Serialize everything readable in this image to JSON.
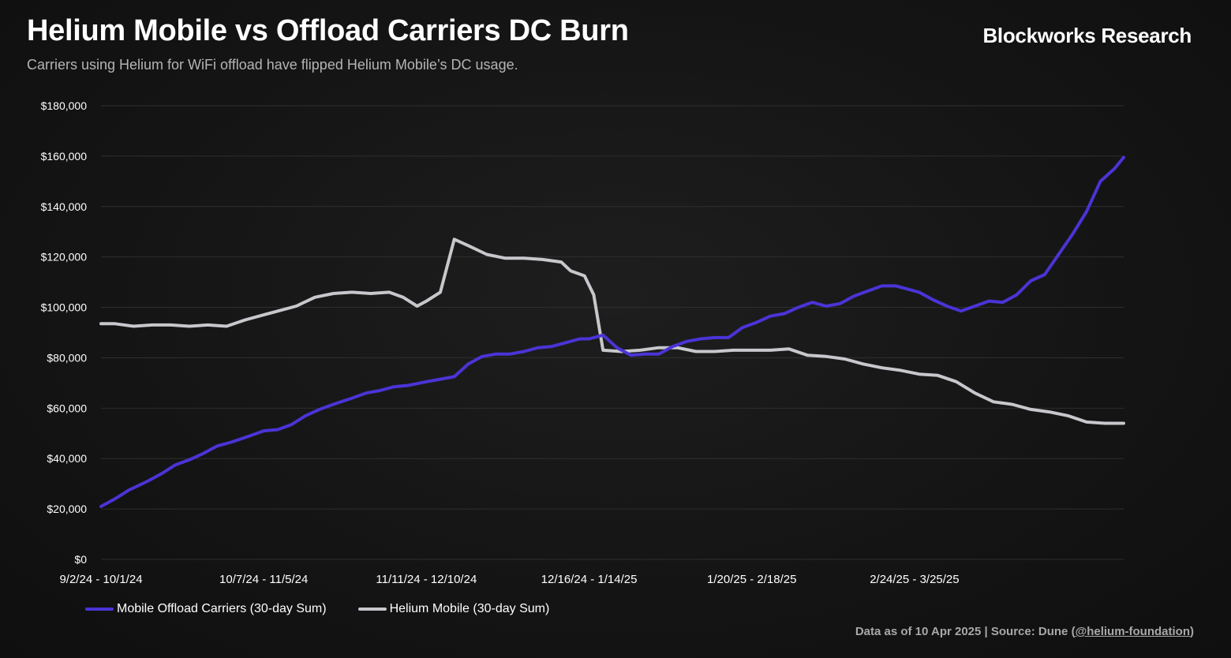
{
  "header": {
    "title": "Helium Mobile vs Offload Carriers DC Burn",
    "subtitle": "Carriers using Helium for WiFi offload have flipped Helium Mobile’s DC usage.",
    "brand": "Blockworks Research"
  },
  "footer": {
    "prefix": "Data as of 10 Apr 2025 | Source: Dune (",
    "link": "@helium-foundation",
    "suffix": ")"
  },
  "colors": {
    "offload": "#4a34d6",
    "helium": "#c7c7cc",
    "grid": "#2e2e2e"
  },
  "chart_data": {
    "type": "line",
    "title": "Helium Mobile vs Offload Carriers DC Burn",
    "ylim": [
      0,
      180000
    ],
    "y_ticks": [
      {
        "value": 0,
        "label": "$0"
      },
      {
        "value": 20000,
        "label": "$20,000"
      },
      {
        "value": 40000,
        "label": "$40,000"
      },
      {
        "value": 60000,
        "label": "$60,000"
      },
      {
        "value": 80000,
        "label": "$80,000"
      },
      {
        "value": 100000,
        "label": "$100,000"
      },
      {
        "value": 120000,
        "label": "$120,000"
      },
      {
        "value": 140000,
        "label": "$140,000"
      },
      {
        "value": 160000,
        "label": "$160,000"
      },
      {
        "value": 180000,
        "label": "$180,000"
      }
    ],
    "x_range": [
      "2024-09-02",
      "2025-04-10"
    ],
    "x_ticks": [
      {
        "date": "2024-09-02",
        "label": "9/2/24 - 10/1/24"
      },
      {
        "date": "2024-10-07",
        "label": "10/7/24 - 11/5/24"
      },
      {
        "date": "2024-11-11",
        "label": "11/11/24 - 12/10/24"
      },
      {
        "date": "2024-12-16",
        "label": "12/16/24 - 1/14/25"
      },
      {
        "date": "2025-01-20",
        "label": "1/20/25 - 2/18/25"
      },
      {
        "date": "2025-02-24",
        "label": "2/24/25 - 3/25/25"
      }
    ],
    "grid": true,
    "legend_position": "bottom-left",
    "series": [
      {
        "name": "Mobile Offload Carriers (30-day Sum)",
        "points": [
          [
            "2024-09-02",
            21000
          ],
          [
            "2024-09-05",
            24000
          ],
          [
            "2024-09-08",
            27500
          ],
          [
            "2024-09-12",
            31000
          ],
          [
            "2024-09-15",
            34000
          ],
          [
            "2024-09-18",
            37500
          ],
          [
            "2024-09-21",
            39500
          ],
          [
            "2024-09-24",
            42000
          ],
          [
            "2024-09-27",
            45000
          ],
          [
            "2024-09-30",
            46500
          ],
          [
            "2024-10-04",
            49000
          ],
          [
            "2024-10-07",
            51000
          ],
          [
            "2024-10-10",
            51500
          ],
          [
            "2024-10-13",
            53500
          ],
          [
            "2024-10-16",
            57000
          ],
          [
            "2024-10-19",
            59500
          ],
          [
            "2024-10-22",
            61500
          ],
          [
            "2024-10-26",
            64000
          ],
          [
            "2024-10-29",
            66000
          ],
          [
            "2024-11-01",
            67000
          ],
          [
            "2024-11-04",
            68500
          ],
          [
            "2024-11-07",
            69000
          ],
          [
            "2024-11-11",
            70500
          ],
          [
            "2024-11-14",
            71500
          ],
          [
            "2024-11-17",
            72500
          ],
          [
            "2024-11-20",
            77500
          ],
          [
            "2024-11-23",
            80500
          ],
          [
            "2024-11-26",
            81500
          ],
          [
            "2024-11-29",
            81500
          ],
          [
            "2024-12-02",
            82500
          ],
          [
            "2024-12-05",
            84000
          ],
          [
            "2024-12-08",
            84500
          ],
          [
            "2024-12-11",
            86000
          ],
          [
            "2024-12-14",
            87500
          ],
          [
            "2024-12-16",
            87500
          ],
          [
            "2024-12-19",
            89000
          ],
          [
            "2024-12-22",
            84000
          ],
          [
            "2024-12-25",
            81000
          ],
          [
            "2024-12-28",
            81500
          ],
          [
            "2024-12-31",
            81500
          ],
          [
            "2025-01-03",
            84500
          ],
          [
            "2025-01-06",
            86500
          ],
          [
            "2025-01-09",
            87500
          ],
          [
            "2025-01-12",
            88000
          ],
          [
            "2025-01-15",
            88000
          ],
          [
            "2025-01-18",
            92000
          ],
          [
            "2025-01-21",
            94000
          ],
          [
            "2025-01-24",
            96500
          ],
          [
            "2025-01-27",
            97500
          ],
          [
            "2025-01-30",
            100000
          ],
          [
            "2025-02-02",
            102000
          ],
          [
            "2025-02-05",
            100500
          ],
          [
            "2025-02-08",
            101500
          ],
          [
            "2025-02-11",
            104500
          ],
          [
            "2025-02-14",
            106500
          ],
          [
            "2025-02-17",
            108500
          ],
          [
            "2025-02-20",
            108500
          ],
          [
            "2025-02-22",
            107500
          ],
          [
            "2025-02-25",
            106000
          ],
          [
            "2025-02-28",
            103000
          ],
          [
            "2025-03-03",
            100500
          ],
          [
            "2025-03-06",
            98500
          ],
          [
            "2025-03-09",
            100500
          ],
          [
            "2025-03-12",
            102500
          ],
          [
            "2025-03-15",
            102000
          ],
          [
            "2025-03-18",
            105000
          ],
          [
            "2025-03-21",
            110500
          ],
          [
            "2025-03-24",
            113000
          ],
          [
            "2025-03-27",
            121000
          ],
          [
            "2025-03-30",
            129000
          ],
          [
            "2025-04-02",
            138000
          ],
          [
            "2025-04-05",
            150000
          ],
          [
            "2025-04-08",
            155000
          ],
          [
            "2025-04-10",
            159500
          ]
        ]
      },
      {
        "name": "Helium Mobile (30-day Sum)",
        "points": [
          [
            "2024-09-02",
            93500
          ],
          [
            "2024-09-05",
            93500
          ],
          [
            "2024-09-09",
            92500
          ],
          [
            "2024-09-13",
            93000
          ],
          [
            "2024-09-17",
            93000
          ],
          [
            "2024-09-21",
            92500
          ],
          [
            "2024-09-25",
            93000
          ],
          [
            "2024-09-29",
            92500
          ],
          [
            "2024-10-03",
            95000
          ],
          [
            "2024-10-07",
            97000
          ],
          [
            "2024-10-10",
            98500
          ],
          [
            "2024-10-14",
            100500
          ],
          [
            "2024-10-18",
            104000
          ],
          [
            "2024-10-22",
            105500
          ],
          [
            "2024-10-26",
            106000
          ],
          [
            "2024-10-30",
            105500
          ],
          [
            "2024-11-03",
            106000
          ],
          [
            "2024-11-06",
            104000
          ],
          [
            "2024-11-09",
            100500
          ],
          [
            "2024-11-11",
            102500
          ],
          [
            "2024-11-14",
            106000
          ],
          [
            "2024-11-17",
            127000
          ],
          [
            "2024-11-20",
            124500
          ],
          [
            "2024-11-24",
            121000
          ],
          [
            "2024-11-28",
            119500
          ],
          [
            "2024-12-02",
            119500
          ],
          [
            "2024-12-06",
            119000
          ],
          [
            "2024-12-10",
            118000
          ],
          [
            "2024-12-12",
            114500
          ],
          [
            "2024-12-15",
            112500
          ],
          [
            "2024-12-17",
            105000
          ],
          [
            "2024-12-19",
            83000
          ],
          [
            "2024-12-23",
            82500
          ],
          [
            "2024-12-27",
            83000
          ],
          [
            "2024-12-31",
            84000
          ],
          [
            "2025-01-04",
            84000
          ],
          [
            "2025-01-08",
            82500
          ],
          [
            "2025-01-12",
            82500
          ],
          [
            "2025-01-16",
            83000
          ],
          [
            "2025-01-20",
            83000
          ],
          [
            "2025-01-24",
            83000
          ],
          [
            "2025-01-28",
            83500
          ],
          [
            "2025-02-01",
            81000
          ],
          [
            "2025-02-05",
            80500
          ],
          [
            "2025-02-09",
            79500
          ],
          [
            "2025-02-13",
            77500
          ],
          [
            "2025-02-17",
            76000
          ],
          [
            "2025-02-21",
            75000
          ],
          [
            "2025-02-25",
            73500
          ],
          [
            "2025-03-01",
            73000
          ],
          [
            "2025-03-05",
            70500
          ],
          [
            "2025-03-09",
            66000
          ],
          [
            "2025-03-13",
            62500
          ],
          [
            "2025-03-17",
            61500
          ],
          [
            "2025-03-21",
            59500
          ],
          [
            "2025-03-25",
            58500
          ],
          [
            "2025-03-29",
            57000
          ],
          [
            "2025-04-02",
            54500
          ],
          [
            "2025-04-06",
            54000
          ],
          [
            "2025-04-10",
            54000
          ]
        ]
      }
    ]
  }
}
